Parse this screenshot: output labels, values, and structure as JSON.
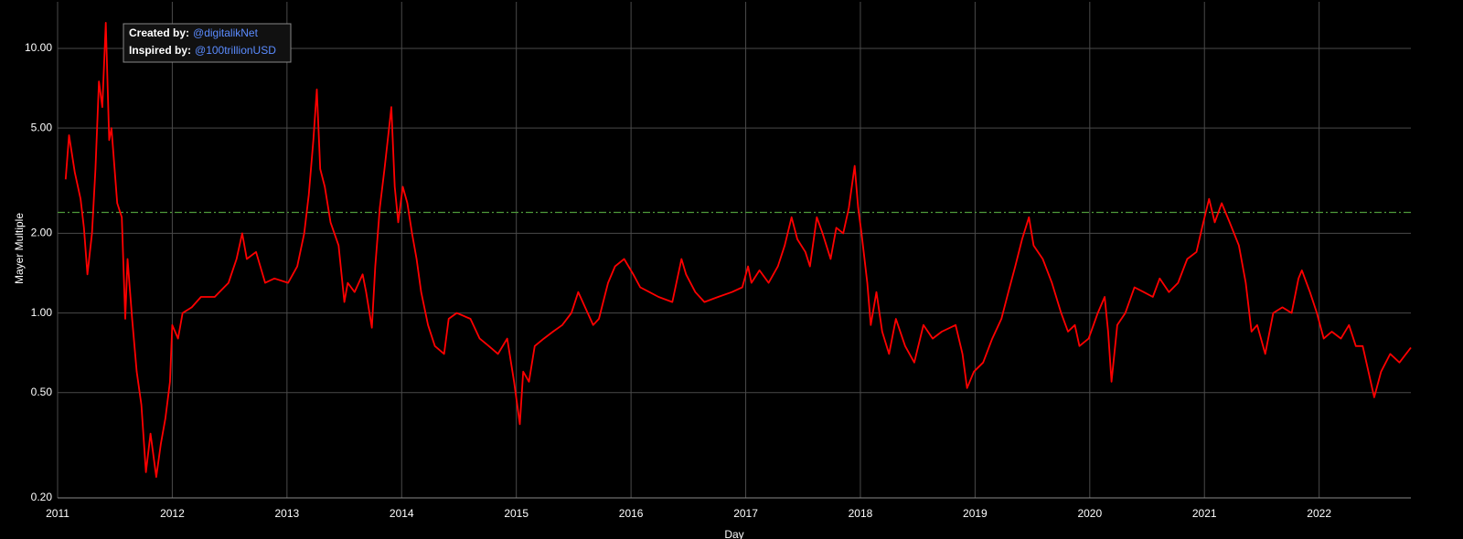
{
  "chart_data": {
    "type": "line",
    "y_label": "Mayer Multiple",
    "x_label": "Day",
    "annotation": {
      "created_label": "Created by:",
      "created_handle": "@digitalikNet",
      "inspired_label": "Inspired by:",
      "inspired_handle": "@100trillionUSD"
    },
    "log_scale_y": true,
    "grid": true,
    "xlim": [
      2011,
      2022.8
    ],
    "xticks": [
      2011,
      2012,
      2013,
      2014,
      2015,
      2016,
      2017,
      2018,
      2019,
      2020,
      2021,
      2022
    ],
    "ylim": [
      0.2,
      15
    ],
    "yticks": [
      {
        "value": 0.2,
        "label": "0.20"
      },
      {
        "value": 0.5,
        "label": "0.50"
      },
      {
        "value": 1,
        "label": "1.00"
      },
      {
        "value": 2,
        "label": "2.00"
      },
      {
        "value": 5,
        "label": "5.00"
      },
      {
        "value": 10,
        "label": "10.00"
      }
    ],
    "reference_line": {
      "value": 2.4,
      "color": "#4e9a3a"
    },
    "x": [
      2011.07,
      2011.1,
      2011.15,
      2011.2,
      2011.23,
      2011.26,
      2011.3,
      2011.33,
      2011.36,
      2011.39,
      2011.42,
      2011.45,
      2011.47,
      2011.52,
      2011.56,
      2011.59,
      2011.61,
      2011.65,
      2011.69,
      2011.73,
      2011.77,
      2011.81,
      2011.86,
      2011.9,
      2011.94,
      2011.98,
      2012.0,
      2012.05,
      2012.09,
      2012.17,
      2012.25,
      2012.37,
      2012.49,
      2012.56,
      2012.61,
      2012.65,
      2012.73,
      2012.81,
      2012.89,
      2013.01,
      2013.09,
      2013.15,
      2013.19,
      2013.23,
      2013.26,
      2013.29,
      2013.33,
      2013.38,
      2013.45,
      2013.5,
      2013.53,
      2013.59,
      2013.66,
      2013.69,
      2013.74,
      2013.77,
      2013.81,
      2013.85,
      2013.89,
      2013.91,
      2013.94,
      2013.97,
      2014.01,
      2014.05,
      2014.09,
      2014.13,
      2014.17,
      2014.23,
      2014.29,
      2014.37,
      2014.41,
      2014.48,
      2014.6,
      2014.68,
      2014.76,
      2014.84,
      2014.92,
      2014.98,
      2015.03,
      2015.06,
      2015.11,
      2015.16,
      2015.24,
      2015.32,
      2015.4,
      2015.48,
      2015.54,
      2015.6,
      2015.67,
      2015.72,
      2015.8,
      2015.86,
      2015.94,
      2016.02,
      2016.08,
      2016.16,
      2016.24,
      2016.36,
      2016.44,
      2016.48,
      2016.56,
      2016.64,
      2016.76,
      2016.88,
      2016.97,
      2017.02,
      2017.05,
      2017.12,
      2017.2,
      2017.28,
      2017.34,
      2017.4,
      2017.45,
      2017.52,
      2017.56,
      2017.62,
      2017.67,
      2017.74,
      2017.79,
      2017.85,
      2017.9,
      2017.95,
      2017.98,
      2018.01,
      2018.06,
      2018.09,
      2018.14,
      2018.19,
      2018.25,
      2018.31,
      2018.39,
      2018.47,
      2018.55,
      2018.63,
      2018.71,
      2018.83,
      2018.89,
      2018.93,
      2018.99,
      2019.07,
      2019.15,
      2019.23,
      2019.29,
      2019.35,
      2019.41,
      2019.47,
      2019.51,
      2019.59,
      2019.67,
      2019.75,
      2019.81,
      2019.87,
      2019.91,
      2019.99,
      2020.07,
      2020.13,
      2020.16,
      2020.19,
      2020.24,
      2020.31,
      2020.39,
      2020.47,
      2020.55,
      2020.61,
      2020.69,
      2020.77,
      2020.85,
      2020.93,
      2020.99,
      2021.04,
      2021.09,
      2021.15,
      2021.22,
      2021.3,
      2021.36,
      2021.41,
      2021.46,
      2021.53,
      2021.6,
      2021.68,
      2021.76,
      2021.82,
      2021.85,
      2021.92,
      2021.98,
      2022.04,
      2022.11,
      2022.19,
      2022.26,
      2022.32,
      2022.38,
      2022.43,
      2022.48,
      2022.54,
      2022.62,
      2022.7,
      2022.8
    ],
    "series": [
      {
        "color": "#ff0000",
        "values": [
          3.2,
          4.7,
          3.4,
          2.7,
          2.1,
          1.4,
          2.0,
          3.5,
          7.5,
          6.0,
          12.5,
          4.5,
          5.0,
          2.6,
          2.3,
          0.95,
          1.6,
          0.95,
          0.6,
          0.45,
          0.25,
          0.35,
          0.24,
          0.32,
          0.4,
          0.55,
          0.9,
          0.8,
          1.0,
          1.05,
          1.15,
          1.15,
          1.3,
          1.6,
          2.0,
          1.6,
          1.7,
          1.3,
          1.35,
          1.3,
          1.5,
          2.0,
          2.8,
          4.5,
          7.0,
          3.5,
          3.0,
          2.2,
          1.8,
          1.1,
          1.3,
          1.2,
          1.4,
          1.2,
          0.88,
          1.5,
          2.5,
          3.5,
          5.0,
          6.0,
          3.0,
          2.2,
          3.0,
          2.6,
          2.0,
          1.6,
          1.2,
          0.9,
          0.75,
          0.7,
          0.95,
          1.0,
          0.95,
          0.8,
          0.75,
          0.7,
          0.8,
          0.55,
          0.38,
          0.6,
          0.55,
          0.75,
          0.8,
          0.85,
          0.9,
          1.0,
          1.2,
          1.05,
          0.9,
          0.95,
          1.3,
          1.5,
          1.6,
          1.4,
          1.25,
          1.2,
          1.15,
          1.1,
          1.6,
          1.4,
          1.2,
          1.1,
          1.15,
          1.2,
          1.25,
          1.5,
          1.3,
          1.45,
          1.3,
          1.5,
          1.8,
          2.3,
          1.9,
          1.7,
          1.5,
          2.3,
          2.0,
          1.6,
          2.1,
          2.0,
          2.5,
          3.6,
          2.5,
          2.0,
          1.3,
          0.9,
          1.2,
          0.85,
          0.7,
          0.95,
          0.75,
          0.65,
          0.9,
          0.8,
          0.85,
          0.9,
          0.7,
          0.52,
          0.6,
          0.65,
          0.8,
          0.95,
          1.2,
          1.5,
          1.9,
          2.3,
          1.8,
          1.6,
          1.3,
          1.0,
          0.85,
          0.9,
          0.75,
          0.8,
          1.0,
          1.15,
          0.85,
          0.55,
          0.9,
          1.0,
          1.25,
          1.2,
          1.15,
          1.35,
          1.2,
          1.3,
          1.6,
          1.7,
          2.2,
          2.7,
          2.2,
          2.6,
          2.2,
          1.8,
          1.3,
          0.85,
          0.9,
          0.7,
          1.0,
          1.05,
          1.0,
          1.35,
          1.45,
          1.2,
          1.0,
          0.8,
          0.85,
          0.8,
          0.9,
          0.75,
          0.75,
          0.6,
          0.48,
          0.6,
          0.7,
          0.65,
          0.74
        ]
      }
    ]
  }
}
